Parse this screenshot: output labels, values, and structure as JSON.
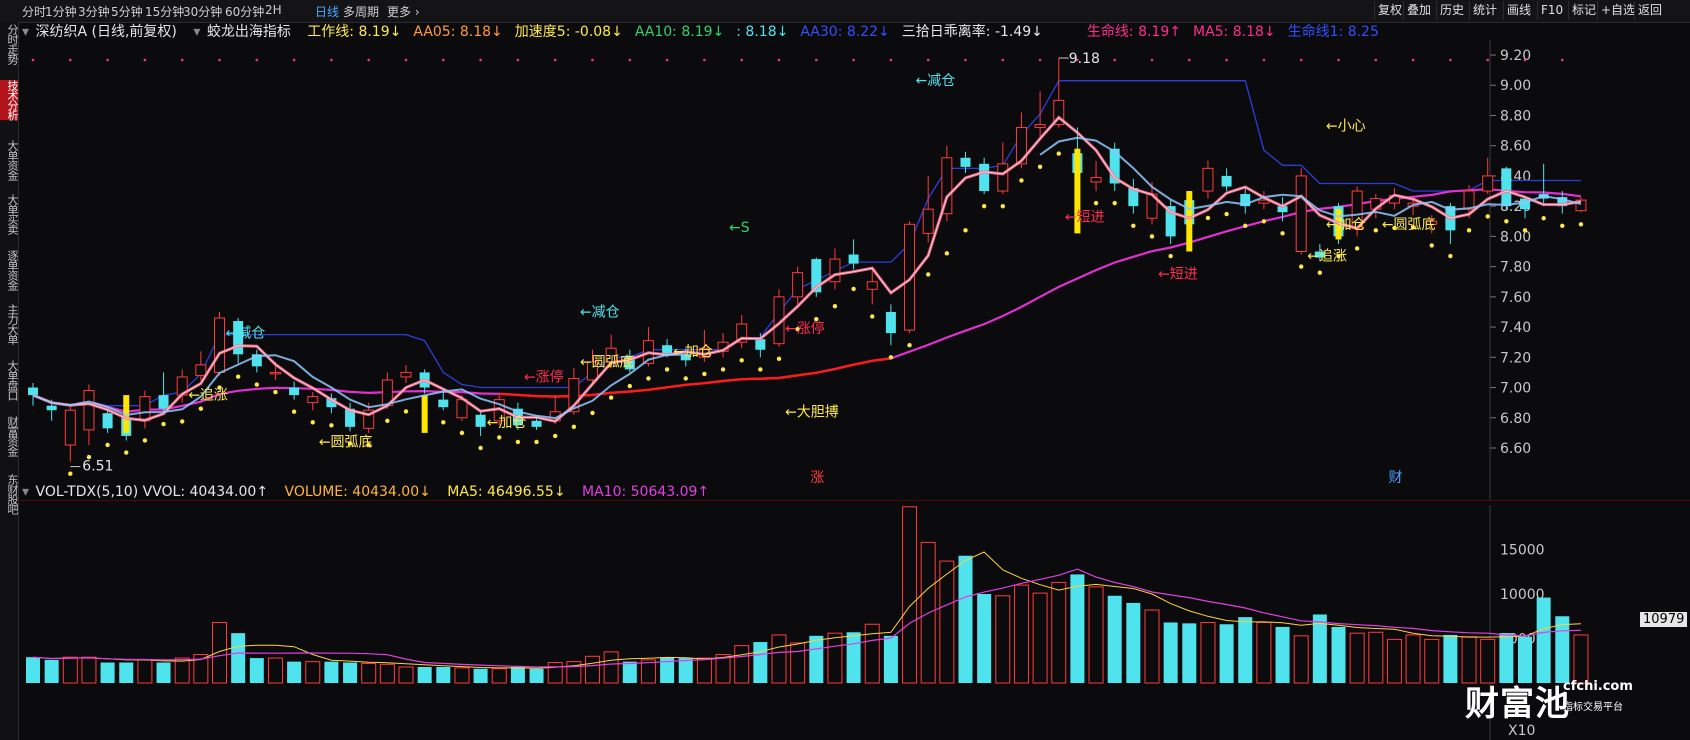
{
  "topbar": {
    "periods": [
      "分时",
      "1分钟",
      "3分钟",
      "5分钟",
      "15分钟",
      "30分钟",
      "60分钟",
      "2H",
      "日线",
      "多周期",
      "更多"
    ],
    "active_period": "日线",
    "right_buttons": [
      "复权",
      "叠加",
      "历史",
      "统计",
      "画线",
      "F10",
      "标记",
      "+自选",
      "返回"
    ]
  },
  "sidebar": {
    "tabs": [
      "分时走势",
      "技术分析",
      "大单资金",
      "大单买卖",
      "逐单资金",
      "主力大单",
      "大单盘口",
      "财富资金",
      "东财股吧"
    ],
    "active": "技术分析"
  },
  "header": {
    "stock": "深纺织A (日线,前复权)",
    "indicator": "蛟龙出海指标",
    "values": [
      {
        "label": "工作线: 8.19↓",
        "color": "#ffe94a"
      },
      {
        "label": "AA05: 8.18↓",
        "color": "#ff9a3c"
      },
      {
        "label": "加速度5: -0.08↓",
        "color": "#ffe94a"
      },
      {
        "label": "AA10: 8.19↓",
        "color": "#2fd36b"
      },
      {
        "label": ": 8.18↓",
        "color": "#4fe3ee"
      },
      {
        "label": "AA30: 8.22↓",
        "color": "#3050ff"
      },
      {
        "label": "三拾日乖离率: -1.49↓",
        "color": "#e6e6e6"
      },
      {
        "label": "生命线: 8.19↑",
        "color": "#ff2d8f"
      },
      {
        "label": "MA5: 8.18↓",
        "color": "#ff2d8f"
      },
      {
        "label": "生命线1: 8.25",
        "color": "#3050ff"
      }
    ]
  },
  "price_axis": {
    "ticks": [
      "9.20",
      "9.00",
      "8.80",
      "8.60",
      "8.40",
      "8.20",
      "8.00",
      "7.80",
      "7.60",
      "7.40",
      "7.20",
      "7.00",
      "6.80",
      "6.60"
    ],
    "min": 6.5,
    "max": 9.3
  },
  "markers": {
    "high": "9.18",
    "low": "6.51",
    "zhang": "涨",
    "cai": "财"
  },
  "annotations": [
    {
      "text": "←减仓",
      "color": "#4fe3ee",
      "i": 10,
      "p": 7.33
    },
    {
      "text": "←追涨",
      "color": "#ffe94a",
      "i": 8,
      "p": 6.92
    },
    {
      "text": "←圆弧底",
      "color": "#ffe94a",
      "i": 15,
      "p": 6.61
    },
    {
      "text": "←加仓",
      "color": "#ffe94a",
      "i": 24,
      "p": 6.74
    },
    {
      "text": "←涨停",
      "color": "#ff2d55",
      "i": 26,
      "p": 7.04
    },
    {
      "text": "←减仓",
      "color": "#4fe3ee",
      "i": 29,
      "p": 7.47
    },
    {
      "text": "←圆弧底",
      "color": "#ffe94a",
      "i": 29,
      "p": 7.14
    },
    {
      "text": "←加仓",
      "color": "#ffe94a",
      "i": 34,
      "p": 7.21
    },
    {
      "text": "←S",
      "color": "#2fd36b",
      "i": 37,
      "p": 8.03
    },
    {
      "text": "←涨停",
      "color": "#ff2d55",
      "i": 40,
      "p": 7.36
    },
    {
      "text": "←大胆搏",
      "color": "#ffe94a",
      "i": 40,
      "p": 6.81
    },
    {
      "text": "←减仓",
      "color": "#4fe3ee",
      "i": 47,
      "p": 9.0
    },
    {
      "text": "←短进",
      "color": "#ff2d55",
      "i": 55,
      "p": 8.1
    },
    {
      "text": "←短进",
      "color": "#ff2d55",
      "i": 60,
      "p": 7.72
    },
    {
      "text": "←追涨",
      "color": "#ffe94a",
      "i": 68,
      "p": 7.84
    },
    {
      "text": "←小心",
      "color": "#ffe94a",
      "i": 69,
      "p": 8.7
    },
    {
      "text": "←加仓",
      "color": "#ffe94a",
      "i": 69,
      "p": 8.05
    },
    {
      "text": "←圆弧底",
      "color": "#ffe94a",
      "i": 72,
      "p": 8.05
    }
  ],
  "candles": [
    [
      7.0,
      6.95,
      7.03,
      6.88
    ],
    [
      6.88,
      6.85,
      6.92,
      6.78
    ],
    [
      6.62,
      6.85,
      6.88,
      6.51
    ],
    [
      6.72,
      6.98,
      7.02,
      6.62
    ],
    [
      6.83,
      6.73,
      6.86,
      6.7
    ],
    [
      6.8,
      6.68,
      6.86,
      6.65
    ],
    [
      6.78,
      6.94,
      6.98,
      6.73
    ],
    [
      6.95,
      6.86,
      7.1,
      6.84
    ],
    [
      6.95,
      7.07,
      7.12,
      6.9
    ],
    [
      7.08,
      7.15,
      7.24,
      7.05
    ],
    [
      7.1,
      7.46,
      7.5,
      7.08
    ],
    [
      7.44,
      7.22,
      7.46,
      7.16
    ],
    [
      7.22,
      7.14,
      7.25,
      7.1
    ],
    [
      7.1,
      7.1,
      7.17,
      7.05
    ],
    [
      7.0,
      6.95,
      7.04,
      6.92
    ],
    [
      6.9,
      6.94,
      6.97,
      6.85
    ],
    [
      6.93,
      6.87,
      6.96,
      6.83
    ],
    [
      6.86,
      6.74,
      6.9,
      6.71
    ],
    [
      6.73,
      6.85,
      6.9,
      6.7
    ],
    [
      6.88,
      7.05,
      7.1,
      6.86
    ],
    [
      7.07,
      7.1,
      7.15,
      7.03
    ],
    [
      7.1,
      7.0,
      7.12,
      6.96
    ],
    [
      6.92,
      6.87,
      6.98,
      6.85
    ],
    [
      6.8,
      6.92,
      6.95,
      6.78
    ],
    [
      6.82,
      6.74,
      6.85,
      6.68
    ],
    [
      6.78,
      6.92,
      6.95,
      6.75
    ],
    [
      6.86,
      6.75,
      6.9,
      6.72
    ],
    [
      6.78,
      6.74,
      6.8,
      6.72
    ],
    [
      6.78,
      6.84,
      6.95,
      6.76
    ],
    [
      6.84,
      7.06,
      7.13,
      6.82
    ],
    [
      7.05,
      7.17,
      7.25,
      7.02
    ],
    [
      7.17,
      7.26,
      7.35,
      7.13
    ],
    [
      7.21,
      7.12,
      7.25,
      7.1
    ],
    [
      7.16,
      7.31,
      7.4,
      7.14
    ],
    [
      7.28,
      7.22,
      7.32,
      7.2
    ],
    [
      7.22,
      7.18,
      7.26,
      7.14
    ],
    [
      7.2,
      7.26,
      7.38,
      7.17
    ],
    [
      7.24,
      7.3,
      7.36,
      7.2
    ],
    [
      7.3,
      7.42,
      7.48,
      7.26
    ],
    [
      7.32,
      7.25,
      7.36,
      7.2
    ],
    [
      7.29,
      7.6,
      7.65,
      7.27
    ],
    [
      7.6,
      7.76,
      7.8,
      7.55
    ],
    [
      7.85,
      7.63,
      7.86,
      7.6
    ],
    [
      7.7,
      7.85,
      7.92,
      7.65
    ],
    [
      7.88,
      7.82,
      7.98,
      7.78
    ],
    [
      7.65,
      7.7,
      7.78,
      7.55
    ],
    [
      7.5,
      7.36,
      7.55,
      7.28
    ],
    [
      7.38,
      8.08,
      8.1,
      7.36
    ],
    [
      8.02,
      8.18,
      8.4,
      7.96
    ],
    [
      8.15,
      8.52,
      8.6,
      8.1
    ],
    [
      8.52,
      8.46,
      8.56,
      8.42
    ],
    [
      8.48,
      8.3,
      8.52,
      8.28
    ],
    [
      8.3,
      8.48,
      8.62,
      8.28
    ],
    [
      8.48,
      8.72,
      8.82,
      8.45
    ],
    [
      8.72,
      8.74,
      8.96,
      8.65
    ],
    [
      8.74,
      8.9,
      9.18,
      8.72
    ],
    [
      8.55,
      8.42,
      8.72,
      8.4
    ],
    [
      8.36,
      8.39,
      8.5,
      8.3
    ],
    [
      8.58,
      8.35,
      8.62,
      8.3
    ],
    [
      8.32,
      8.2,
      8.38,
      8.15
    ],
    [
      8.12,
      8.28,
      8.36,
      8.08
    ],
    [
      8.2,
      8.0,
      8.24,
      7.95
    ],
    [
      8.24,
      8.08,
      8.3,
      8.06
    ],
    [
      8.3,
      8.45,
      8.5,
      8.25
    ],
    [
      8.4,
      8.33,
      8.45,
      8.3
    ],
    [
      8.28,
      8.2,
      8.32,
      8.15
    ],
    [
      8.22,
      8.24,
      8.3,
      8.18
    ],
    [
      8.2,
      8.16,
      8.26,
      8.1
    ],
    [
      7.9,
      8.4,
      8.45,
      7.88
    ],
    [
      7.9,
      7.86,
      7.95,
      7.84
    ],
    [
      8.2,
      8.0,
      8.22,
      7.95
    ],
    [
      8.05,
      8.3,
      8.33,
      8.0
    ],
    [
      8.18,
      8.25,
      8.28,
      8.12
    ],
    [
      8.22,
      8.27,
      8.32,
      8.18
    ],
    [
      8.2,
      8.22,
      8.26,
      8.14
    ],
    [
      8.08,
      8.1,
      8.14,
      8.02
    ],
    [
      8.2,
      8.04,
      8.22,
      7.95
    ],
    [
      8.18,
      8.3,
      8.34,
      8.12
    ],
    [
      8.3,
      8.4,
      8.52,
      8.28
    ],
    [
      8.45,
      8.2,
      8.46,
      8.18
    ],
    [
      8.25,
      8.18,
      8.26,
      8.12
    ],
    [
      8.28,
      8.25,
      8.48,
      8.2
    ],
    [
      8.26,
      8.2,
      8.3,
      8.15
    ],
    [
      8.17,
      8.24,
      8.26,
      8.16
    ]
  ],
  "volume_panel": {
    "label": "VOL-TDX(5,10) VVOL: 40434.00↑",
    "volume": "VOLUME: 40434.00↓",
    "ma5": "MA5: 46496.55↓",
    "ma10": "MA10: 50643.09↑",
    "ticks": [
      "15000",
      "10000",
      "5000"
    ],
    "unit": "X10",
    "current": "10979",
    "max": 20000,
    "volumes": [
      2.9,
      2.6,
      2.9,
      2.9,
      2.3,
      2.3,
      2.6,
      2.3,
      2.8,
      3.2,
      6.8,
      5.6,
      2.8,
      2.8,
      2.4,
      2.4,
      2.4,
      2.3,
      2.2,
      2.1,
      1.8,
      1.8,
      1.8,
      1.7,
      1.6,
      1.6,
      1.8,
      1.6,
      2.3,
      2.4,
      3.0,
      3.5,
      2.4,
      2.6,
      2.9,
      2.8,
      2.8,
      3.2,
      4.2,
      4.6,
      5.4,
      4.5,
      5.3,
      5.6,
      5.7,
      6.6,
      5.3,
      19.8,
      15.8,
      13.7,
      14.3,
      10.0,
      9.8,
      11.0,
      10.1,
      11.3,
      12.2,
      10.8,
      9.8,
      9.0,
      8.2,
      6.8,
      6.7,
      6.8,
      6.6,
      7.4,
      6.8,
      6.3,
      5.3,
      7.7,
      6.3,
      5.6,
      5.7,
      4.9,
      5.4,
      4.9,
      5.4,
      5.2,
      4.9,
      5.6,
      5.2,
      9.6,
      7.5,
      5.4
    ]
  },
  "watermark": {
    "brand": "财富池",
    "site": "cfchi.com",
    "tagline": "指标交易平台"
  }
}
